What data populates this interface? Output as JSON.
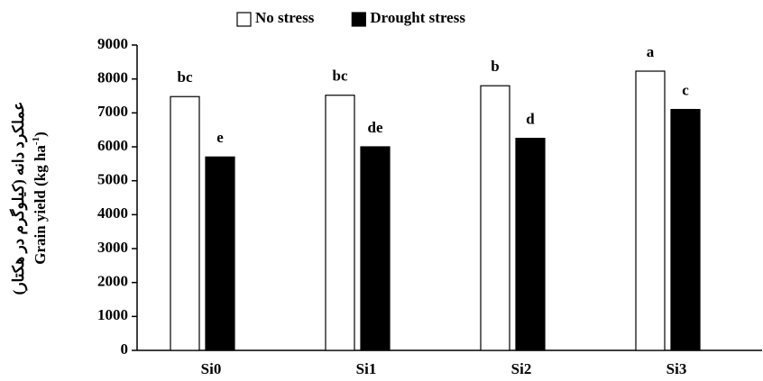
{
  "chart_data": {
    "type": "bar",
    "ylabel_fa": "عملکرد دانه (کیلوگرم در هکتار)",
    "ylabel": [
      "Grain yield (kg ha",
      "-1",
      ")"
    ],
    "categories": [
      "Si0",
      "Si1",
      "Si2",
      "Si3"
    ],
    "series": [
      {
        "name": "No stress",
        "color": "#ffffff",
        "values": [
          7480,
          7520,
          7800,
          8230
        ],
        "letters": [
          "bc",
          "bc",
          "b",
          "a"
        ]
      },
      {
        "name": "Drought stress",
        "color": "#000000",
        "values": [
          5700,
          6000,
          6250,
          7100
        ],
        "letters": [
          "e",
          "de",
          "d",
          "c"
        ]
      }
    ],
    "ylim": [
      0,
      9000
    ],
    "yticks": [
      0,
      1000,
      2000,
      3000,
      4000,
      5000,
      6000,
      7000,
      8000,
      9000
    ],
    "grid": false,
    "legend": "top"
  }
}
